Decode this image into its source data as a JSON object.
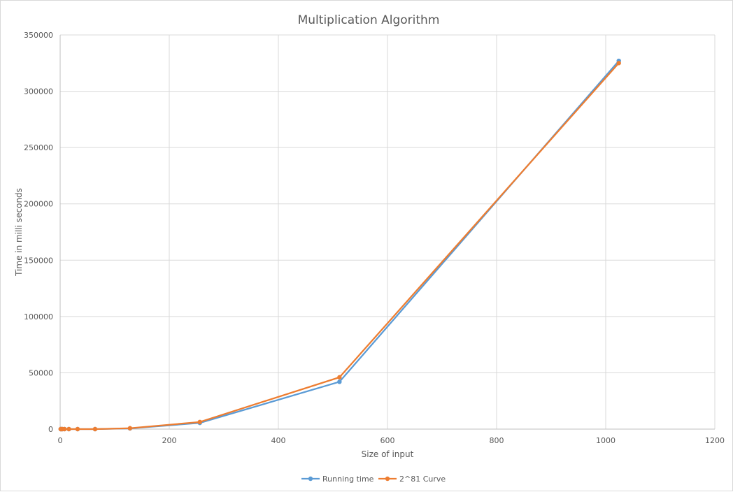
{
  "chart_data": {
    "type": "line",
    "title": "Multiplication Algorithm",
    "xlabel": "Size of input",
    "ylabel": "Time in milli seconds",
    "xlim": [
      0,
      1200
    ],
    "ylim": [
      0,
      350000
    ],
    "x_ticks": [
      0,
      200,
      400,
      600,
      800,
      1000,
      1200
    ],
    "y_ticks": [
      0,
      50000,
      100000,
      150000,
      200000,
      250000,
      300000,
      350000
    ],
    "grid": true,
    "legend_position": "bottom",
    "series": [
      {
        "name": "Running time",
        "color": "#5b9bd5",
        "points": [
          [
            1,
            0
          ],
          [
            2,
            0
          ],
          [
            4,
            0
          ],
          [
            8,
            0
          ],
          [
            16,
            0
          ],
          [
            32,
            0
          ],
          [
            64,
            0
          ],
          [
            128,
            600
          ],
          [
            256,
            5500
          ],
          [
            512,
            42000
          ],
          [
            1024,
            327000
          ]
        ]
      },
      {
        "name": "2^81 Curve",
        "color": "#ed7d31",
        "points": [
          [
            1,
            0
          ],
          [
            2,
            0
          ],
          [
            4,
            0
          ],
          [
            8,
            0
          ],
          [
            16,
            0
          ],
          [
            32,
            0
          ],
          [
            64,
            0
          ],
          [
            128,
            800
          ],
          [
            256,
            6300
          ],
          [
            512,
            46000
          ],
          [
            1024,
            325000
          ]
        ]
      }
    ]
  }
}
